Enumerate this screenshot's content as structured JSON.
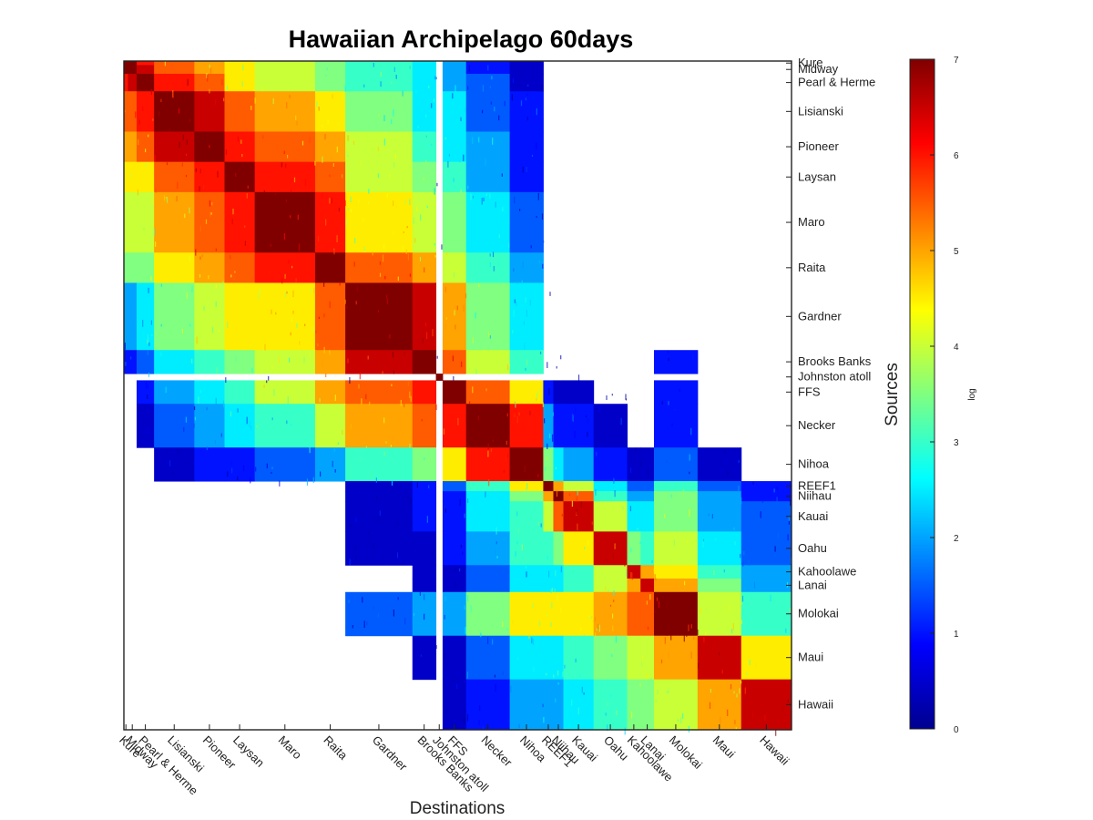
{
  "chart_data": {
    "type": "heatmap",
    "title": "Hawaiian Archipelago 60days",
    "xlabel": "Destinations",
    "ylabel": "Sources",
    "colorbar": {
      "label": "log",
      "range": [
        0,
        7
      ],
      "ticks": [
        "0",
        "1",
        "2",
        "3",
        "4",
        "5",
        "6",
        "7"
      ],
      "colormap": "jet"
    },
    "regions": [
      "Kure",
      "Midway",
      "Pearl & Herme",
      "Lisianski",
      "Pioneer",
      "Laysan",
      "Maro",
      "Raita",
      "Gardner",
      "Brooks Banks",
      "Johnston atoll",
      "FFS",
      "Necker",
      "Nihoa",
      "REEF1",
      "Niihau",
      "Kauai",
      "Oahu",
      "Kahoolawe",
      "Lanai",
      "Molokai",
      "Maui",
      "Hawaii"
    ],
    "region_extent_fraction": [
      0.006,
      0.013,
      0.026,
      0.06,
      0.045,
      0.045,
      0.09,
      0.045,
      0.1,
      0.035,
      0.01,
      0.035,
      0.065,
      0.05,
      0.015,
      0.015,
      0.045,
      0.05,
      0.02,
      0.02,
      0.065,
      0.065,
      0.075
    ],
    "approx_log_connectivity": [
      [
        7,
        7,
        6,
        5.5,
        5,
        4.5,
        4,
        3.5,
        3,
        2.5,
        0,
        2,
        1,
        0.5,
        0,
        0,
        0,
        0,
        0,
        0,
        0,
        0,
        0
      ],
      [
        7,
        7,
        6.5,
        5.5,
        5,
        4.5,
        4,
        3.5,
        3,
        2.5,
        0,
        2,
        1,
        0.5,
        0,
        0,
        0,
        0,
        0,
        0,
        0,
        0,
        0
      ],
      [
        6,
        6.5,
        7,
        6,
        5.5,
        4.5,
        4,
        3.5,
        3,
        2.5,
        0,
        2,
        1.5,
        0.5,
        0,
        0,
        0,
        0,
        0,
        0,
        0,
        0,
        0
      ],
      [
        5.5,
        5.5,
        6,
        7,
        6.5,
        5.5,
        5,
        4.5,
        3.5,
        2.5,
        0,
        2.5,
        1.5,
        1,
        0,
        0,
        0,
        0,
        0,
        0,
        0,
        0,
        0
      ],
      [
        5,
        5,
        5.5,
        6.5,
        7,
        6,
        5.5,
        5,
        4,
        3,
        0,
        2.5,
        2,
        1,
        0,
        0,
        0,
        0,
        0,
        0,
        0,
        0,
        0
      ],
      [
        4.5,
        4.5,
        4.5,
        5.5,
        6,
        7,
        6,
        5.5,
        4,
        3.5,
        0,
        3,
        2,
        1,
        0,
        0,
        0,
        0,
        0,
        0,
        0,
        0,
        0
      ],
      [
        4,
        4,
        4,
        5,
        5.5,
        6,
        7,
        6,
        4.5,
        4,
        0,
        3.5,
        2.5,
        1.5,
        0,
        0,
        0,
        0,
        0,
        0,
        0,
        0,
        0
      ],
      [
        3.5,
        3.5,
        3.5,
        4.5,
        5,
        5.5,
        6,
        7,
        5.5,
        5,
        0,
        4,
        3,
        2,
        0,
        0,
        0,
        0,
        0,
        0,
        0,
        0,
        0
      ],
      [
        2,
        2,
        2.5,
        3.5,
        4,
        4.5,
        4.5,
        5.5,
        7,
        6.5,
        0,
        5,
        3.5,
        2.5,
        0,
        0,
        0,
        0,
        0,
        0,
        0,
        0,
        0
      ],
      [
        1,
        1,
        1.5,
        2.5,
        3,
        3.5,
        4,
        5,
        6.5,
        7,
        0,
        5.5,
        4,
        3,
        0,
        0,
        0,
        0,
        0,
        0,
        1,
        0,
        0
      ],
      [
        0,
        0,
        0,
        0,
        0,
        0,
        0,
        0,
        0,
        0,
        7,
        0,
        0,
        0,
        0,
        0,
        0,
        0,
        0,
        0,
        0,
        0,
        0
      ],
      [
        0,
        0,
        1,
        2,
        2.5,
        3,
        4,
        5,
        5.5,
        6,
        0,
        7,
        5.5,
        4.5,
        1,
        0.5,
        0.5,
        0,
        0,
        0,
        1,
        0,
        0
      ],
      [
        0,
        0,
        0.5,
        1.5,
        2,
        2.5,
        3,
        4,
        5,
        5.5,
        0,
        6,
        7,
        6,
        2,
        1,
        1,
        0.5,
        0,
        0,
        1,
        0,
        0
      ],
      [
        0,
        0,
        0,
        0.5,
        1,
        1,
        1.5,
        2,
        3,
        3.5,
        0,
        4.5,
        6,
        7,
        3.5,
        2.5,
        2,
        1,
        0.5,
        0.5,
        1.5,
        0.5,
        0
      ],
      [
        0,
        0,
        0,
        0,
        0,
        0,
        0,
        0,
        0.5,
        1,
        0,
        1.5,
        3,
        4.5,
        7,
        5,
        4,
        2.5,
        1.5,
        1.5,
        3,
        1.5,
        1
      ],
      [
        0,
        0,
        0,
        0,
        0,
        0,
        0,
        0,
        0.5,
        1,
        0,
        1,
        2.5,
        3.5,
        5,
        7,
        5.5,
        3,
        2,
        2,
        3.5,
        2,
        1
      ],
      [
        0,
        0,
        0,
        0,
        0,
        0,
        0,
        0,
        0.5,
        1,
        0,
        1,
        2.5,
        3,
        4,
        5.5,
        6.5,
        4,
        2.5,
        2.5,
        3.5,
        2,
        1.5
      ],
      [
        0,
        0,
        0,
        0,
        0,
        0,
        0,
        0,
        0.5,
        0.5,
        0,
        1,
        2,
        3,
        3,
        3.5,
        4.5,
        6.5,
        3.5,
        3,
        4,
        2.5,
        1.5
      ],
      [
        0,
        0,
        0,
        0,
        0,
        0,
        0,
        0,
        0,
        0.5,
        0,
        0.5,
        1.5,
        2.5,
        2.5,
        2.5,
        3,
        4,
        6.5,
        5,
        4.5,
        3,
        2
      ],
      [
        0,
        0,
        0,
        0,
        0,
        0,
        0,
        0,
        0,
        0.5,
        0,
        0.5,
        1.5,
        2.5,
        2.5,
        2.5,
        3,
        4,
        5,
        6.5,
        5,
        3.5,
        2
      ],
      [
        0,
        0,
        0,
        0,
        0,
        0,
        0,
        0,
        1.5,
        2,
        0,
        2,
        3.5,
        4.5,
        4.5,
        4.5,
        4.5,
        5,
        5.5,
        5.5,
        7,
        4,
        3
      ],
      [
        0,
        0,
        0,
        0,
        0,
        0,
        0,
        0,
        0,
        0.5,
        0,
        0.5,
        1.5,
        2.5,
        2.5,
        2.5,
        3,
        3.5,
        4,
        4,
        5,
        6.5,
        4.5
      ],
      [
        0,
        0,
        0,
        0,
        0,
        0,
        0,
        0,
        0,
        0,
        0,
        0.5,
        1,
        2,
        2,
        2,
        2.5,
        3,
        3.5,
        3.5,
        4,
        5,
        6.5
      ]
    ]
  }
}
